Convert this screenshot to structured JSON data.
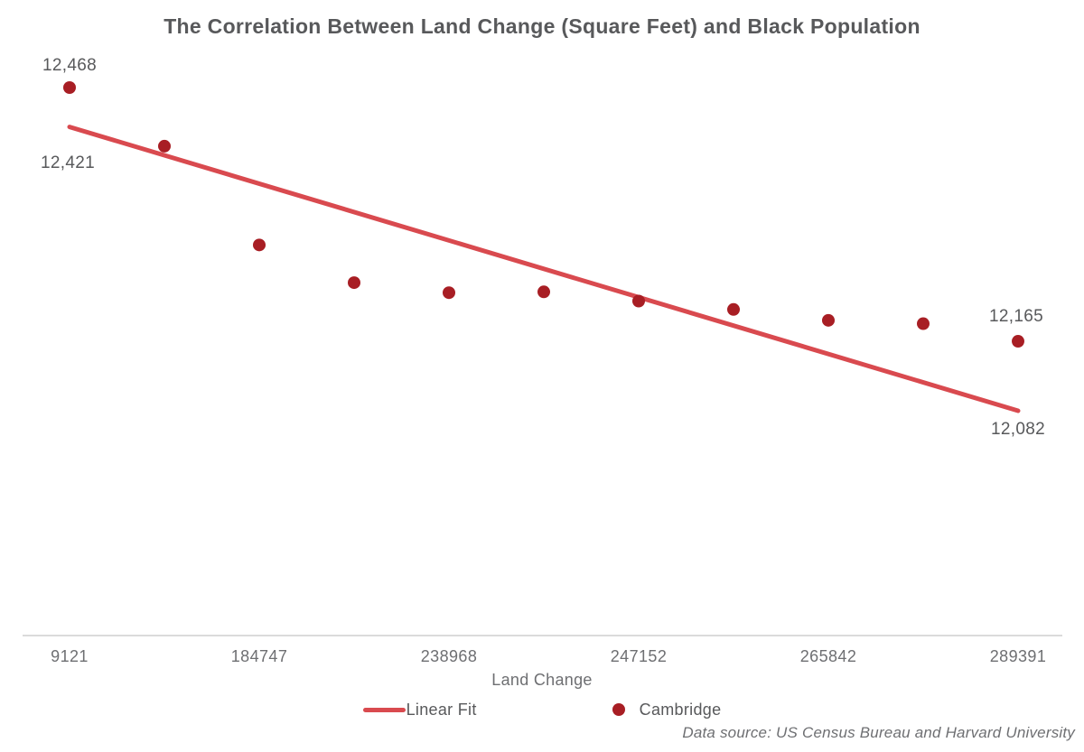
{
  "chart_data": {
    "type": "scatter",
    "title": "The Correlation Between Land Change (Square Feet) and Black Population",
    "xlabel": "Land Change",
    "x_tick_labels": [
      "9121",
      "184747",
      "238968",
      "247152",
      "265842",
      "289391"
    ],
    "x_tick_point_indices": [
      0,
      2,
      4,
      6,
      8,
      10
    ],
    "series": [
      {
        "name": "Cambridge",
        "color": "#A81E24",
        "values": [
          12468,
          12398,
          12280,
          12235,
          12223,
          12224,
          12213,
          12203,
          12190,
          12186,
          12165
        ],
        "first_point_label": "12,468",
        "last_point_label": "12,165"
      }
    ],
    "linear_fit": {
      "name": "Linear Fit",
      "color": "#D94A4F",
      "start_value": 12421,
      "end_value": 12082,
      "start_label": "12,421",
      "end_label": "12,082"
    },
    "legend": [
      {
        "label": "Linear Fit",
        "marker": "line"
      },
      {
        "label": "Cambridge",
        "marker": "dot"
      }
    ],
    "source_note": "Data source: US Census Bureau and Harvard University",
    "y_axis_visible": false,
    "grid": false,
    "colors": {
      "text_dark": "#58595B",
      "text_gray": "#6E6F72",
      "axis_line": "#DBDBDB"
    }
  }
}
